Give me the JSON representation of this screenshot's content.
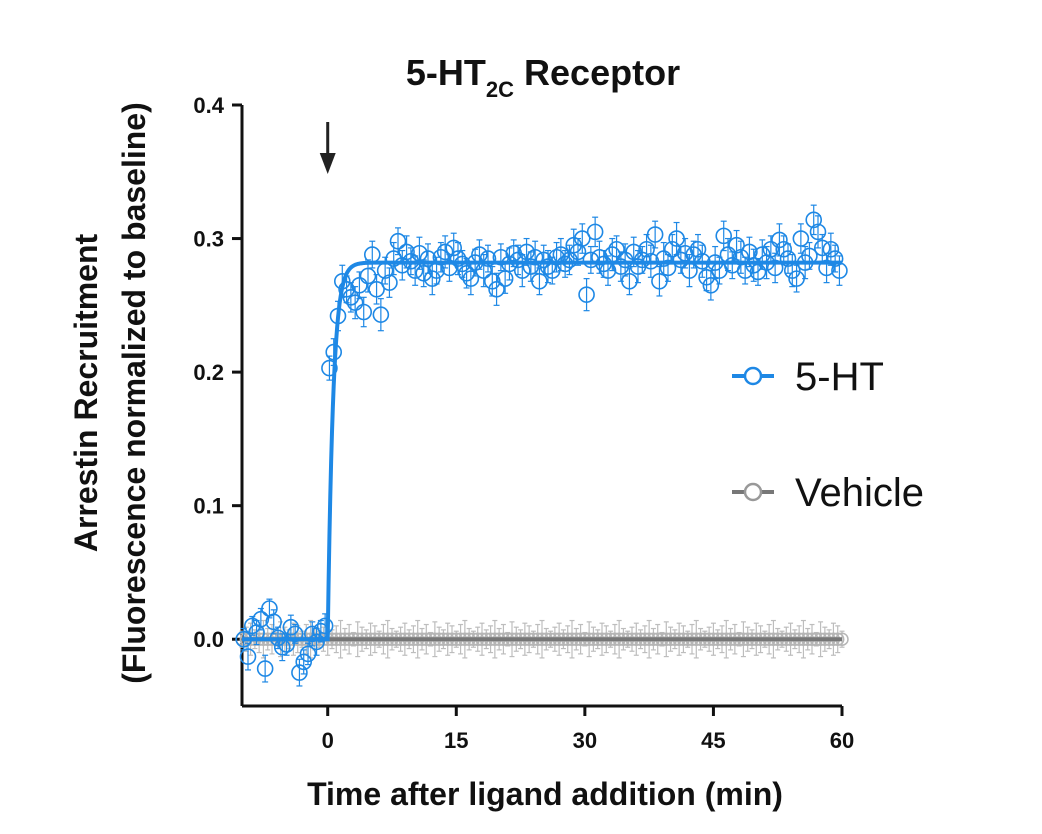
{
  "chart_data": {
    "type": "scatter",
    "title_main": "5-HT",
    "title_sub": "2C",
    "title_rest": " Receptor",
    "xlabel": "Time after ligand addition (min)",
    "ylabel_line1": "Arrestin Recruitment",
    "ylabel_line2": "(Fluorescence normalized to baseline)",
    "xlim": [
      -10,
      60
    ],
    "ylim": [
      -0.05,
      0.4
    ],
    "xticks": [
      0,
      15,
      30,
      45,
      60
    ],
    "xtick_labels": [
      "0",
      "15",
      "30",
      "45",
      "60"
    ],
    "yticks": [
      0.0,
      0.1,
      0.2,
      0.3,
      0.4
    ],
    "ytick_labels": [
      "0.0",
      "0.1",
      "0.2",
      "0.3",
      "0.4"
    ],
    "arrow_annotation_x": 0,
    "grid": false,
    "legend_position": "right",
    "series": [
      {
        "name": "5-HT",
        "color": "#1e88e5",
        "marker": "open-circle",
        "fit": {
          "model": "one-phase association",
          "plateau": 0.282,
          "k_per_min": 1.6,
          "x0": 0
        },
        "x": [
          -9.8,
          -9.3,
          -8.8,
          -8.3,
          -7.8,
          -7.3,
          -6.8,
          -6.3,
          -5.8,
          -5.3,
          -4.8,
          -4.3,
          -3.8,
          -3.3,
          -2.8,
          -2.3,
          -1.8,
          -1.3,
          -0.8,
          -0.3,
          0.2,
          0.7,
          1.2,
          1.7,
          2.2,
          2.7,
          3.2,
          3.7,
          4.2,
          4.7,
          5.2,
          5.7,
          6.2,
          6.7,
          7.2,
          7.7,
          8.2,
          8.7,
          9.2,
          9.7,
          10.2,
          10.7,
          11.2,
          11.7,
          12.2,
          12.7,
          13.2,
          13.7,
          14.2,
          14.7,
          15.2,
          15.7,
          16.2,
          16.7,
          17.2,
          17.7,
          18.2,
          18.7,
          19.2,
          19.7,
          20.2,
          20.7,
          21.2,
          21.7,
          22.2,
          22.7,
          23.2,
          23.7,
          24.2,
          24.7,
          25.2,
          25.7,
          26.2,
          26.7,
          27.2,
          27.7,
          28.2,
          28.7,
          29.2,
          29.7,
          30.2,
          30.7,
          31.2,
          31.7,
          32.2,
          32.7,
          33.2,
          33.7,
          34.2,
          34.7,
          35.2,
          35.7,
          36.2,
          36.7,
          37.2,
          37.7,
          38.2,
          38.7,
          39.2,
          39.7,
          40.2,
          40.7,
          41.2,
          41.7,
          42.2,
          42.7,
          43.2,
          43.7,
          44.2,
          44.7,
          45.2,
          45.7,
          46.2,
          46.7,
          47.2,
          47.7,
          48.2,
          48.7,
          49.2,
          49.7,
          50.2,
          50.7,
          51.2,
          51.7,
          52.2,
          52.7,
          53.2,
          53.7,
          54.2,
          54.7,
          55.2,
          55.7,
          56.2,
          56.7,
          57.2,
          57.7,
          58.2,
          58.7,
          59.2,
          59.7
        ],
        "y": [
          0.0,
          -0.013,
          0.01,
          0.005,
          0.015,
          -0.022,
          0.023,
          0.013,
          0.001,
          -0.006,
          -0.004,
          0.009,
          0.004,
          -0.025,
          -0.017,
          -0.011,
          0.004,
          -0.002,
          0.006,
          0.01,
          0.203,
          0.215,
          0.242,
          0.268,
          0.262,
          0.256,
          0.252,
          0.265,
          0.245,
          0.272,
          0.288,
          0.262,
          0.243,
          0.276,
          0.267,
          0.285,
          0.298,
          0.28,
          0.29,
          0.283,
          0.276,
          0.289,
          0.274,
          0.285,
          0.27,
          0.276,
          0.286,
          0.29,
          0.278,
          0.293,
          0.285,
          0.281,
          0.274,
          0.27,
          0.282,
          0.288,
          0.276,
          0.285,
          0.268,
          0.262,
          0.286,
          0.27,
          0.281,
          0.289,
          0.284,
          0.276,
          0.29,
          0.279,
          0.286,
          0.268,
          0.284,
          0.279,
          0.276,
          0.286,
          0.288,
          0.281,
          0.284,
          0.295,
          0.29,
          0.3,
          0.258,
          0.284,
          0.305,
          0.286,
          0.281,
          0.276,
          0.288,
          0.292,
          0.279,
          0.284,
          0.268,
          0.29,
          0.279,
          0.284,
          0.292,
          0.283,
          0.303,
          0.268,
          0.285,
          0.278,
          0.292,
          0.3,
          0.284,
          0.289,
          0.276,
          0.288,
          0.292,
          0.283,
          0.271,
          0.265,
          0.282,
          0.276,
          0.302,
          0.288,
          0.28,
          0.295,
          0.286,
          0.276,
          0.29,
          0.28,
          0.275,
          0.288,
          0.282,
          0.292,
          0.278,
          0.299,
          0.292,
          0.285,
          0.276,
          0.27,
          0.3,
          0.282,
          0.287,
          0.314,
          0.305,
          0.293,
          0.278,
          0.292,
          0.285,
          0.276
        ],
        "err": [
          0.008,
          0.01,
          0.007,
          0.009,
          0.008,
          0.01,
          0.007,
          0.009,
          0.008,
          0.01,
          0.008,
          0.009,
          0.007,
          0.01,
          0.009,
          0.008,
          0.009,
          0.01,
          0.008,
          0.009,
          0.009,
          0.01,
          0.011,
          0.012,
          0.01,
          0.011,
          0.012,
          0.01,
          0.011,
          0.012,
          0.01,
          0.011,
          0.012,
          0.01,
          0.011,
          0.012,
          0.01,
          0.011,
          0.012,
          0.01,
          0.011,
          0.012,
          0.01,
          0.011,
          0.012,
          0.01,
          0.011,
          0.012,
          0.01,
          0.011,
          0.012,
          0.01,
          0.011,
          0.012,
          0.01,
          0.011,
          0.012,
          0.01,
          0.011,
          0.012,
          0.01,
          0.011,
          0.012,
          0.01,
          0.011,
          0.012,
          0.01,
          0.011,
          0.012,
          0.01,
          0.011,
          0.012,
          0.01,
          0.011,
          0.012,
          0.01,
          0.011,
          0.012,
          0.01,
          0.011,
          0.012,
          0.01,
          0.011,
          0.012,
          0.01,
          0.011,
          0.012,
          0.01,
          0.011,
          0.012,
          0.01,
          0.011,
          0.012,
          0.01,
          0.011,
          0.012,
          0.01,
          0.011,
          0.012,
          0.01,
          0.011,
          0.012,
          0.01,
          0.011,
          0.012,
          0.01,
          0.011,
          0.012,
          0.01,
          0.011,
          0.012,
          0.01,
          0.011,
          0.012,
          0.01,
          0.011,
          0.012,
          0.01,
          0.011,
          0.012,
          0.01,
          0.011,
          0.012,
          0.01,
          0.011,
          0.012,
          0.01,
          0.011,
          0.012,
          0.01,
          0.011,
          0.012,
          0.01,
          0.011,
          0.012,
          0.01,
          0.011,
          0.012,
          0.01,
          0.011
        ]
      },
      {
        "name": "Vehicle",
        "color": "#888888",
        "marker": "open-circle",
        "fit": {
          "model": "constant",
          "value": 0.0
        },
        "x_start": -10,
        "x_end": 60,
        "x_step": 0.5,
        "y_constant": 0.0,
        "err_pattern": [
          0.006,
          0.009,
          0.012,
          0.007,
          0.01,
          0.014,
          0.008,
          0.011,
          0.005,
          0.013,
          0.009,
          0.007,
          0.012,
          0.01,
          0.006,
          0.011,
          0.014,
          0.008
        ]
      }
    ]
  }
}
